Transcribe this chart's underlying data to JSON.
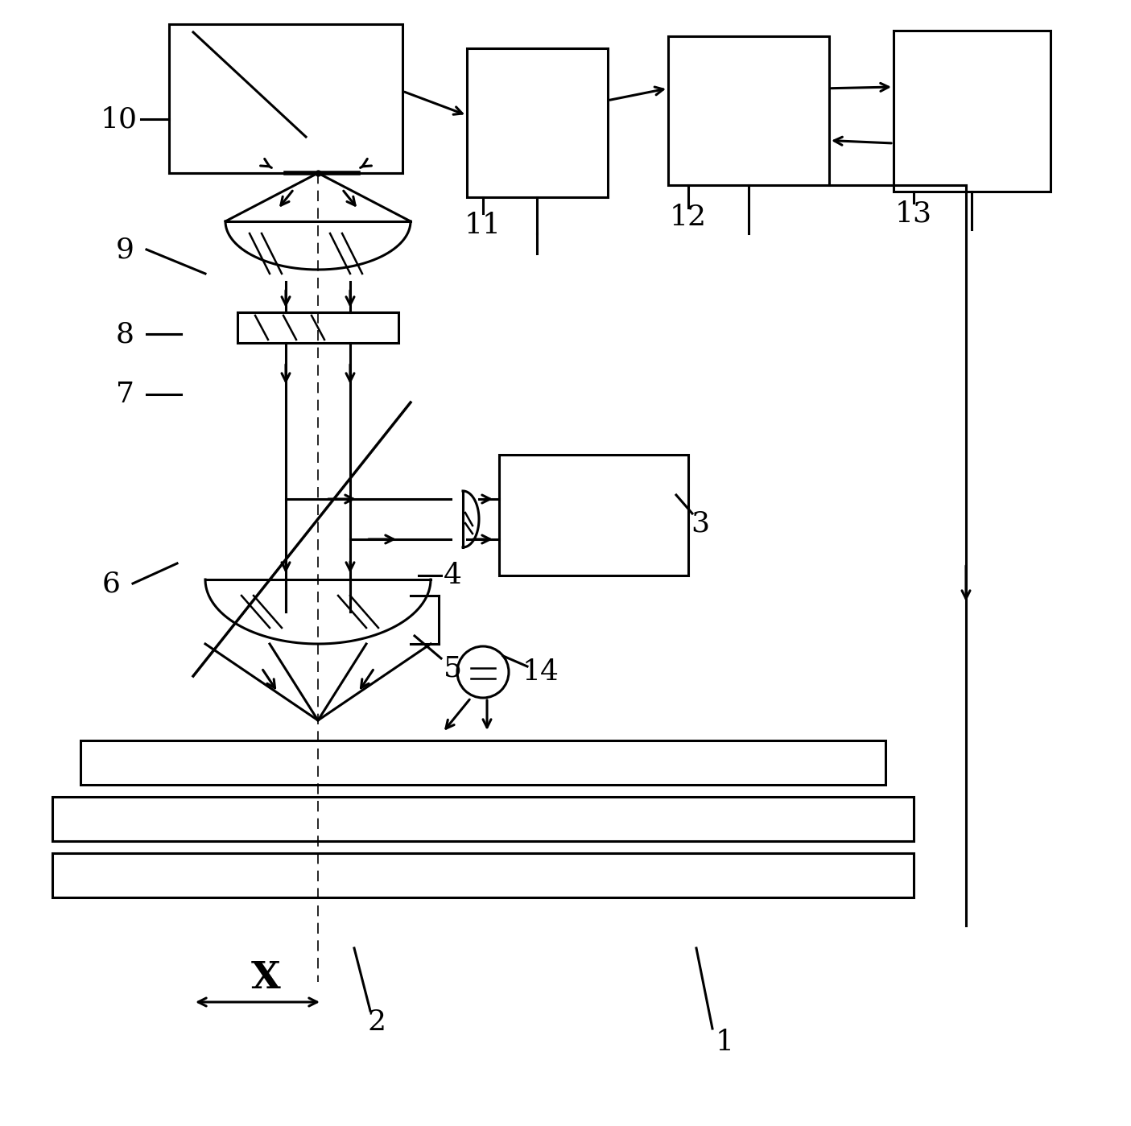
{
  "fig_width": 14.05,
  "fig_height": 13.99,
  "bg_color": "#ffffff",
  "line_color": "#000000",
  "lw": 2.2
}
